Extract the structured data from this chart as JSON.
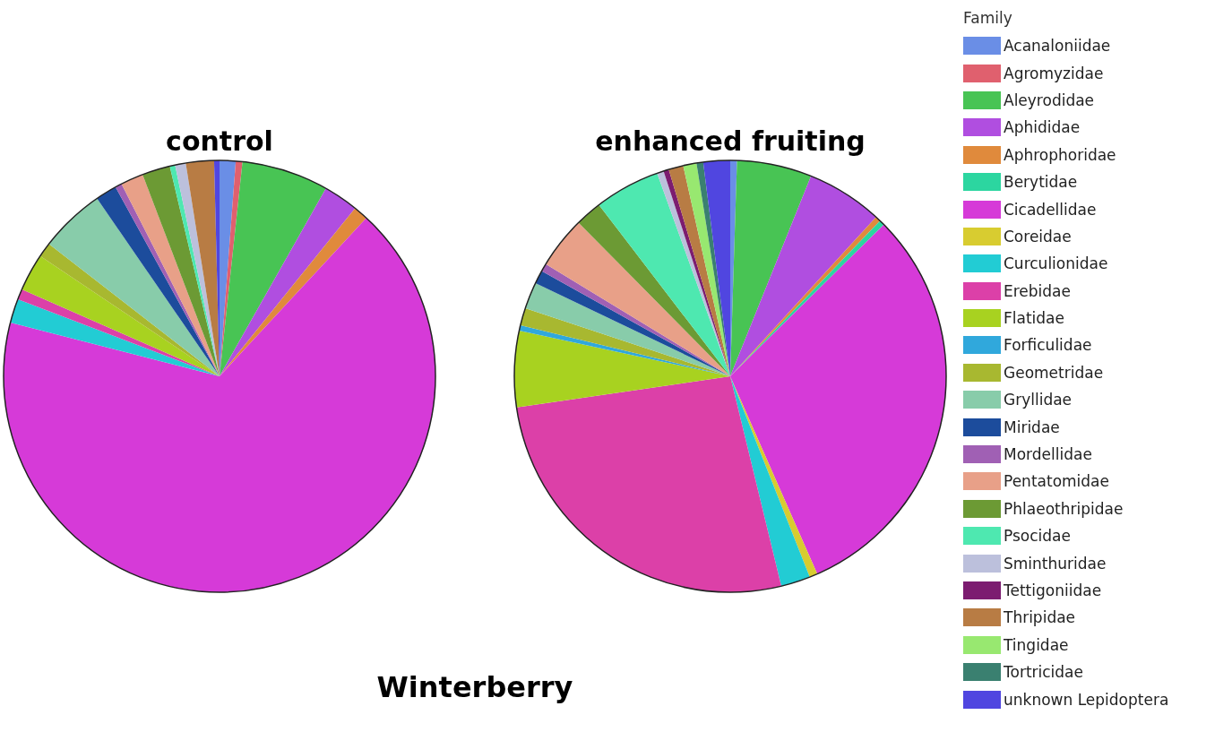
{
  "chart_data": {
    "type": "pie",
    "title": "Winterberry",
    "legend": "right",
    "legend_title": "Family",
    "categories": [
      "Acanaloniidae",
      "Agromyzidae",
      "Aleyrodidae",
      "Aphididae",
      "Aphrophoridae",
      "Berytidae",
      "Cicadellidae",
      "Coreidae",
      "Curculionidae",
      "Erebidae",
      "Flatidae",
      "Forficulidae",
      "Geometridae",
      "Gryllidae",
      "Miridae",
      "Mordellidae",
      "Pentatomidae",
      "Phlaeothripidae",
      "Psocidae",
      "Sminthuridae",
      "Tettigoniidae",
      "Thripidae",
      "Tingidae",
      "Tortricidae",
      "unknown Lepidoptera"
    ],
    "colors": [
      "#6a8ee6",
      "#e0606e",
      "#48c454",
      "#b04ee0",
      "#e08a3c",
      "#2cd6a0",
      "#d63ad8",
      "#d8cc30",
      "#22ccd4",
      "#dc40a8",
      "#a8d220",
      "#30a8dc",
      "#a8b830",
      "#88ccaa",
      "#1c4c9c",
      "#a060b4",
      "#e8a088",
      "#6c9a34",
      "#4ee8b0",
      "#bcc0dc",
      "#7c1c70",
      "#b87c44",
      "#98e870",
      "#3a8070",
      "#5046e0"
    ],
    "series": [
      {
        "name": "control",
        "values": [
          1.2,
          0.5,
          6.5,
          2.6,
          1.1,
          0,
          67.1,
          0,
          1.8,
          0.8,
          2.8,
          0,
          1.1,
          4.9,
          1.6,
          0.5,
          1.7,
          2.1,
          0.4,
          0.8,
          0,
          2.1,
          0,
          0,
          0.4
        ]
      },
      {
        "name": "enhanced fruiting",
        "values": [
          0.5,
          0,
          5.6,
          5.7,
          0.4,
          0.4,
          30.8,
          0.6,
          2.2,
          26.5,
          5.7,
          0.4,
          1.3,
          2,
          1,
          0.6,
          3.9,
          2,
          4.9,
          0.5,
          0.4,
          1.1,
          1,
          0.5,
          2
        ]
      }
    ]
  }
}
